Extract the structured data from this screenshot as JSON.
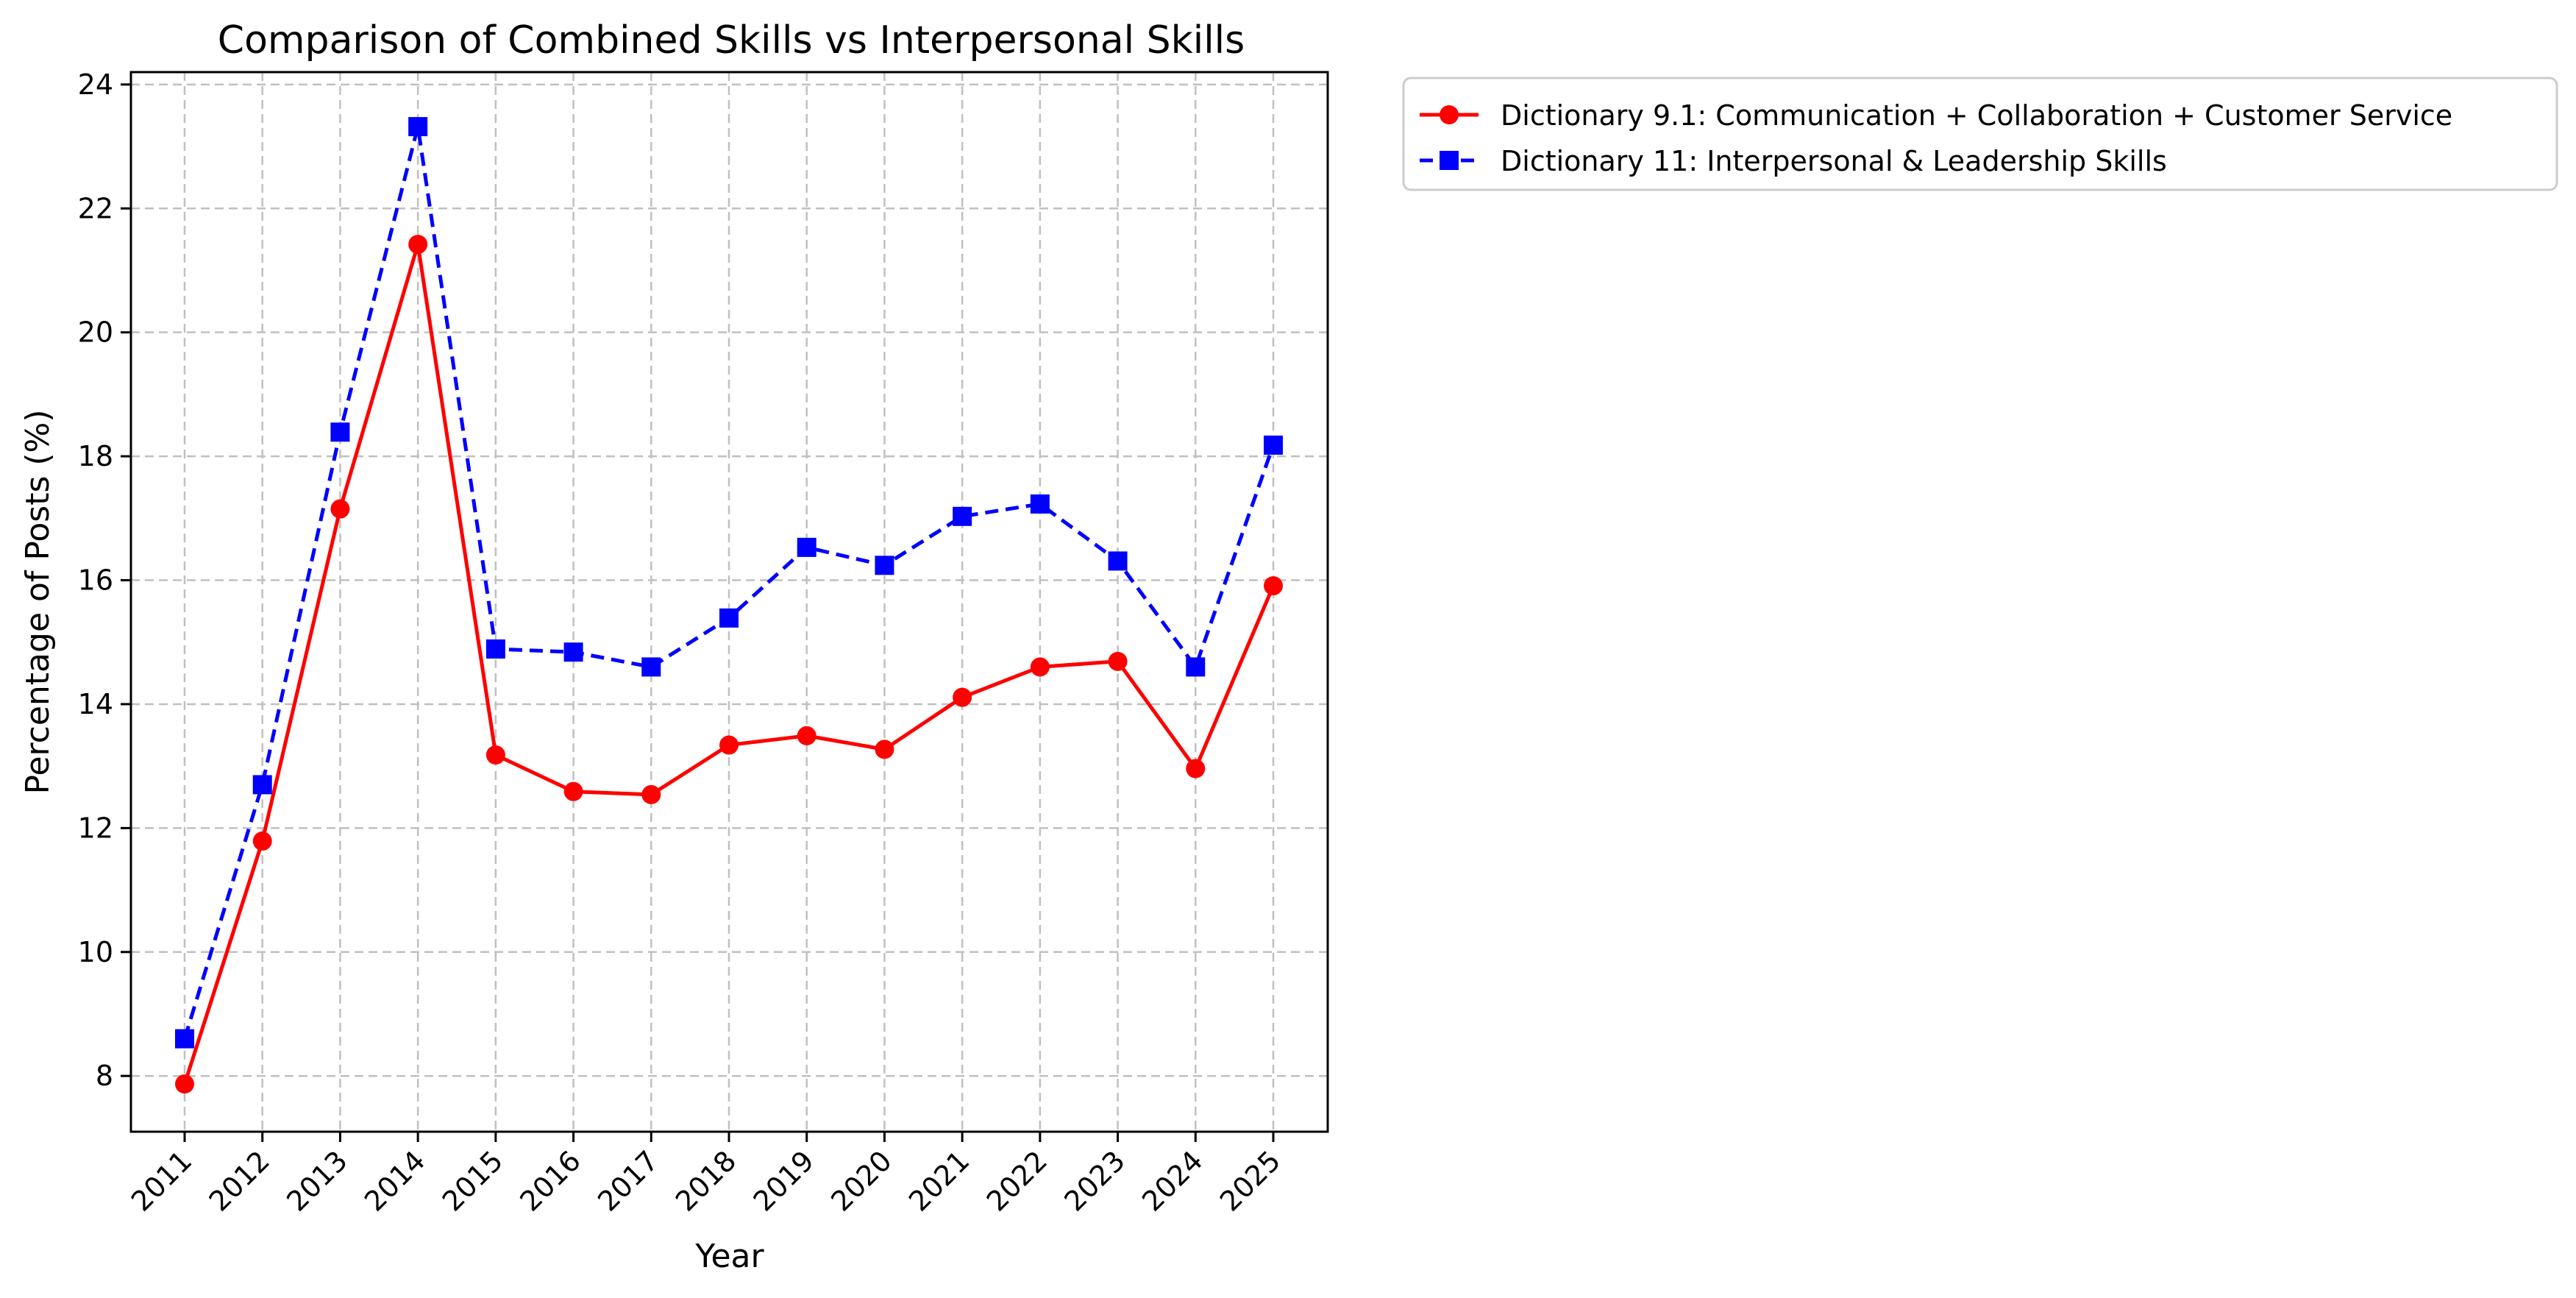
{
  "chart_data": {
    "type": "line",
    "title": "Comparison of Combined Skills vs Interpersonal Skills",
    "xlabel": "Year",
    "ylabel": "Percentage of Posts (%)",
    "x": [
      "2011",
      "2012",
      "2013",
      "2014",
      "2015",
      "2016",
      "2017",
      "2018",
      "2019",
      "2020",
      "2021",
      "2022",
      "2023",
      "2024",
      "2025"
    ],
    "y_ticks": [
      "8",
      "10",
      "12",
      "14",
      "16",
      "18",
      "20",
      "22",
      "24"
    ],
    "ylim": [
      7.1,
      24.2
    ],
    "grid": true,
    "legend_position": "outside-top-right",
    "series": [
      {
        "name": "Dictionary 9.1: Communication + Collaboration + Customer Service",
        "color": "#ff0000",
        "marker": "circle",
        "line_style": "solid",
        "values": [
          7.87,
          11.79,
          17.15,
          21.42,
          13.18,
          12.59,
          12.54,
          13.34,
          13.49,
          13.27,
          14.11,
          14.6,
          14.69,
          12.96,
          15.91
        ]
      },
      {
        "name": "Dictionary 11: Interpersonal & Leadership Skills",
        "color": "#0000ff",
        "marker": "square",
        "line_style": "dashed",
        "values": [
          8.6,
          12.7,
          18.39,
          23.32,
          14.89,
          14.84,
          14.6,
          15.39,
          16.53,
          16.24,
          17.03,
          17.23,
          16.31,
          14.6,
          18.18
        ]
      }
    ]
  }
}
